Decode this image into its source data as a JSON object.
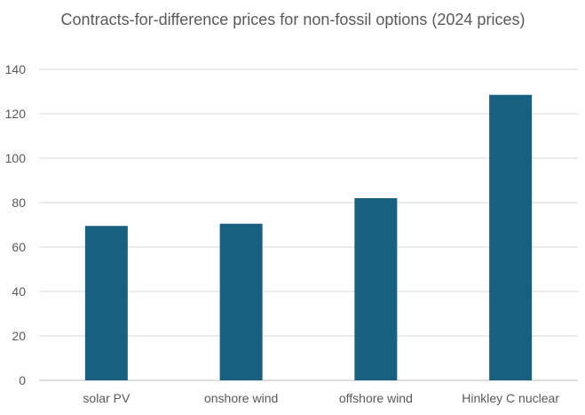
{
  "chart_data": {
    "type": "bar",
    "title": "Contracts-for-difference prices for non-fossil options (2024 prices)",
    "xlabel": "",
    "ylabel": "",
    "categories": [
      "solar PV",
      "onshore wind",
      "offshore wind",
      "Hinkley C nuclear"
    ],
    "values": [
      69.5,
      70.5,
      82,
      128.5
    ],
    "ylim": [
      0,
      140
    ],
    "yticks": [
      "0",
      "20",
      "40",
      "60",
      "80",
      "100",
      "120",
      "140"
    ],
    "grid": true,
    "legend": "none",
    "bar_color": "#17607f",
    "grid_color": "#d9d9d9",
    "text_color": "#595959"
  }
}
